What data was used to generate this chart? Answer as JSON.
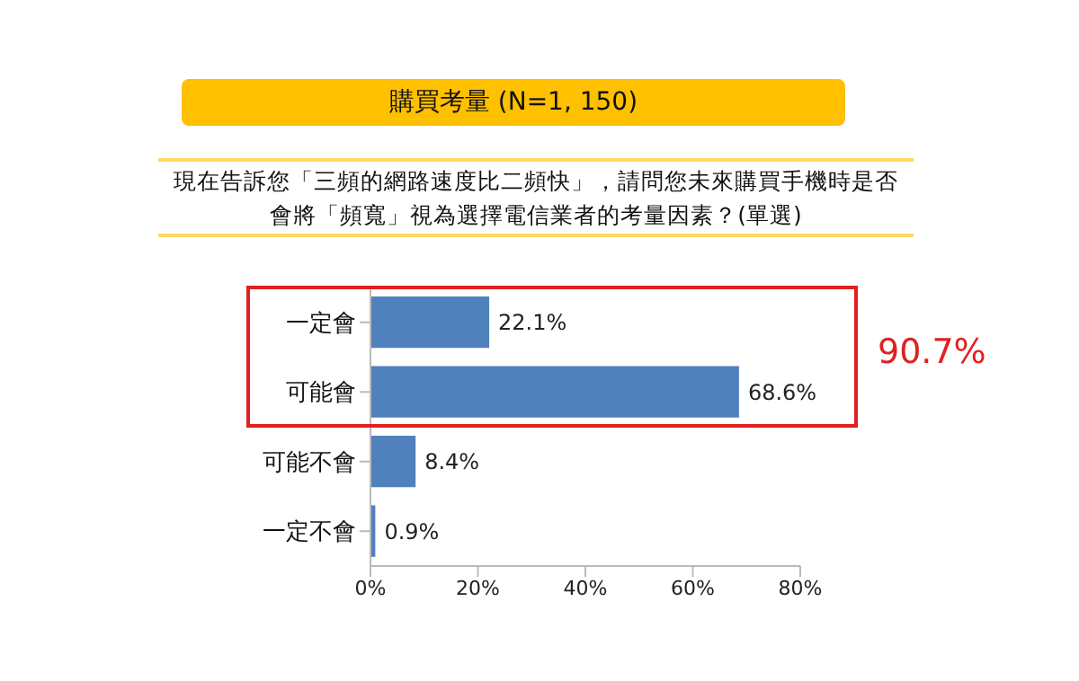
{
  "chart_data": {
    "type": "bar",
    "orientation": "horizontal",
    "title": "購買考量 (N=1, 150)",
    "subtitle": "現在告訴您「三頻的網路速度比二頻快」，請問您未來購買手機時是否會將「頻寬」視為選擇電信業者的考量因素？(單選)",
    "categories": [
      "一定會",
      "可能會",
      "可能不會",
      "一定不會"
    ],
    "values": [
      22.1,
      68.6,
      8.4,
      0.9
    ],
    "value_labels": [
      "22.1%",
      "68.6%",
      "8.4%",
      "0.9%"
    ],
    "color": "#4f81bd",
    "xlim": [
      0,
      80
    ],
    "xticks": [
      {
        "value": 0,
        "label": "0%"
      },
      {
        "value": 20,
        "label": "20%"
      },
      {
        "value": 40,
        "label": "40%"
      },
      {
        "value": 60,
        "label": "60%"
      },
      {
        "value": 80,
        "label": "80%"
      }
    ],
    "annotations": [
      "90.7%"
    ]
  }
}
